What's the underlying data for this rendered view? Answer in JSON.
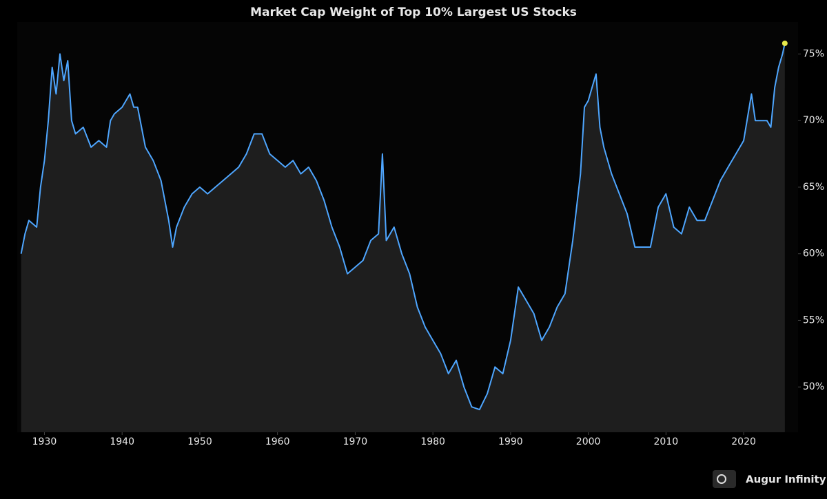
{
  "chart_data": {
    "type": "area",
    "title": "Market Cap Weight of Top 10% Largest US Stocks",
    "watermark": "Augur Infinity",
    "x": [
      1927,
      1927.5,
      1928,
      1929,
      1929.5,
      1930,
      1930.5,
      1931,
      1931.5,
      1932,
      1932.5,
      1933,
      1933.5,
      1934,
      1935,
      1936,
      1937,
      1938,
      1938.5,
      1939,
      1940,
      1941,
      1941.5,
      1942,
      1943,
      1944,
      1945,
      1946,
      1946.5,
      1947,
      1948,
      1949,
      1950,
      1951,
      1952,
      1953,
      1954,
      1955,
      1956,
      1957,
      1958,
      1959,
      1960,
      1961,
      1962,
      1963,
      1964,
      1965,
      1966,
      1967,
      1968,
      1969,
      1970,
      1971,
      1972,
      1973,
      1973.5,
      1974,
      1975,
      1976,
      1977,
      1978,
      1979,
      1980,
      1981,
      1982,
      1983,
      1984,
      1985,
      1986,
      1987,
      1988,
      1989,
      1990,
      1991,
      1992,
      1993,
      1994,
      1995,
      1996,
      1997,
      1998,
      1999,
      1999.5,
      2000,
      2000.5,
      2001,
      2001.5,
      2002,
      2003,
      2004,
      2005,
      2006,
      2007,
      2008,
      2009,
      2010,
      2011,
      2012,
      2013,
      2014,
      2015,
      2016,
      2017,
      2018,
      2019,
      2020,
      2021,
      2021.5,
      2022,
      2023,
      2023.5,
      2024,
      2024.5,
      2025,
      2025.3
    ],
    "values": [
      60,
      61.5,
      62.5,
      62,
      65,
      67,
      70,
      74,
      72,
      75,
      73,
      74.5,
      70,
      69,
      69.5,
      68,
      68.5,
      68,
      70,
      70.5,
      71,
      72,
      71,
      71,
      68,
      67,
      65.5,
      62.5,
      60.5,
      62,
      63.5,
      64.5,
      65,
      64.5,
      65,
      65.5,
      66,
      66.5,
      67.5,
      69,
      69,
      67.5,
      67,
      66.5,
      67,
      66,
      66.5,
      65.5,
      64,
      62,
      60.5,
      58.5,
      59,
      59.5,
      61,
      61.5,
      67.5,
      61,
      62,
      60,
      58.5,
      56,
      54.5,
      53.5,
      52.5,
      51,
      52,
      50,
      48.5,
      48.3,
      49.5,
      51.5,
      51,
      53.5,
      57.5,
      56.5,
      55.5,
      53.5,
      54.5,
      56,
      57,
      61,
      66,
      71,
      71.5,
      72.5,
      73.5,
      69.5,
      68,
      66,
      64.5,
      63,
      60.5,
      60.5,
      60.5,
      63.5,
      64.5,
      62,
      61.5,
      63.5,
      62.5,
      62.5,
      64,
      65.5,
      66.5,
      67.5,
      68.5,
      72,
      70,
      70,
      70,
      69.5,
      72.5,
      74,
      75,
      75.8
    ],
    "color": "#4ea6ff",
    "area_color": "#1e1e1e",
    "last_point_color": "#e6e84a",
    "xlim": [
      1926.5,
      2027
    ],
    "ylim": [
      46.6,
      77.4
    ],
    "xticks": [
      1930,
      1940,
      1950,
      1960,
      1970,
      1980,
      1990,
      2000,
      2010,
      2020
    ],
    "yticks": [
      {
        "value": 50,
        "label": "50%"
      },
      {
        "value": 55,
        "label": "55%"
      },
      {
        "value": 60,
        "label": "60%"
      },
      {
        "value": 65,
        "label": "65%"
      },
      {
        "value": 70,
        "label": "70%"
      },
      {
        "value": 75,
        "label": "75%"
      }
    ]
  }
}
